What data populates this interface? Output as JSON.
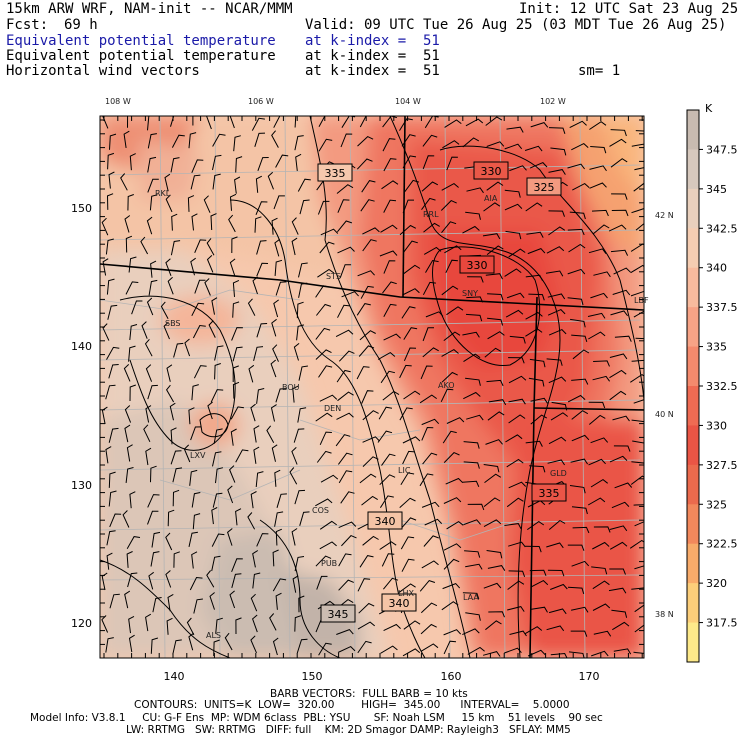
{
  "header": {
    "line1_left": "15km ARW WRF, NAM-init -- NCAR/MMM",
    "line1_right": "Init: 12 UTC Sat 23 Aug 25",
    "fcst_label": "Fcst:",
    "fcst_value": "69 h",
    "valid": "Valid: 09 UTC Tue 26 Aug 25 (03 MDT Tue 26 Aug 25)",
    "field1": "Equivalent potential temperature",
    "field1_level": "at k-index =  51",
    "field2": "Equivalent potential temperature",
    "field2_level": "at k-index =  51",
    "field3": "Horizontal wind vectors",
    "field3_level": "at k-index =  51",
    "sm": "sm= 1"
  },
  "colors": {
    "field_title": "#1a1aa8",
    "grid_lines": "#b4b4b4",
    "contour": "#000000"
  },
  "top_longitude_labels": [
    "108 W",
    "106 W",
    "104 W",
    "102 W"
  ],
  "right_latitude_labels": [
    "42 N",
    "40 N",
    "38 N"
  ],
  "left_grid_labels": [
    "150",
    "140",
    "130",
    "120"
  ],
  "bottom_grid_labels": [
    "140",
    "150",
    "160",
    "170"
  ],
  "stations": [
    "RKL",
    "RRL",
    "STS",
    "SBS",
    "BOU",
    "DEN",
    "AKO",
    "LXV",
    "LIC",
    "COS",
    "GLD",
    "PUB",
    "LHX",
    "LAA",
    "ALS",
    "SNY",
    "AIA",
    "LBF"
  ],
  "contour_labels": [
    "335",
    "330",
    "325",
    "330",
    "340",
    "335",
    "345",
    "340"
  ],
  "colorbar": {
    "unit": "K",
    "labels": [
      "347.5",
      "345",
      "342.5",
      "340",
      "337.5",
      "335",
      "332.5",
      "330",
      "327.5",
      "325",
      "322.5",
      "320",
      "317.5"
    ],
    "colors": [
      "#c8bbb1",
      "#d6c8bd",
      "#e9d0bd",
      "#f5cdb2",
      "#f8bb9e",
      "#f7a386",
      "#f48a6d",
      "#ef6b53",
      "#ea5545",
      "#eb6a4d",
      "#f2885c",
      "#f8ab6a",
      "#fcce7a",
      "#fde98a"
    ]
  },
  "footer": {
    "line1": "BARB VECTORS:  FULL BARB = 10 kts",
    "line2": "CONTOURS:  UNITS=K  LOW=  320.00        HIGH=  345.00      INTERVAL=    5.0000",
    "line3": "Model Info: V3.8.1     CU: G-F Ens  MP: WDM 6class  PBL: YSU       SF: Noah LSM     15 km    51 levels    90 sec",
    "line4": "LW: RRTMG   SW: RRTMG   DIFF: full    KM: 2D Smagor DAMP: Rayleigh3   SFLAY: MM5"
  }
}
